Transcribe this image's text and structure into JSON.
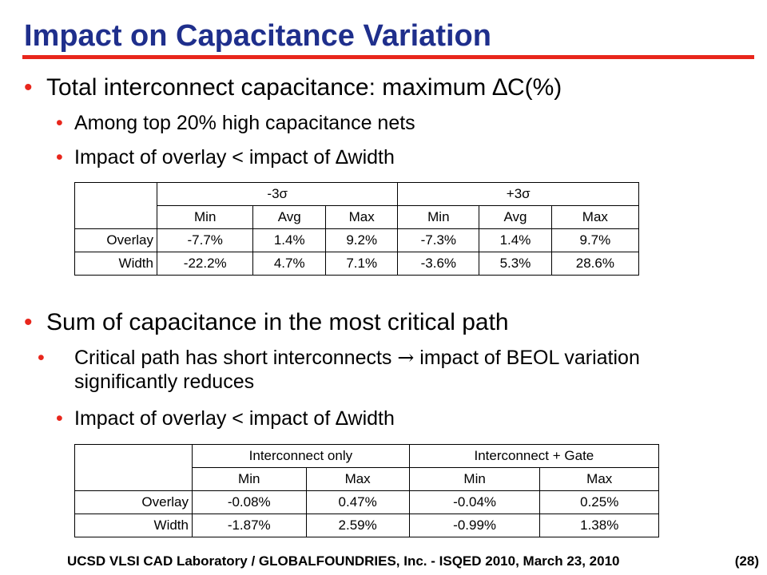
{
  "title": "Impact on Capacitance Variation",
  "colors": {
    "title": "#1f2f8c",
    "rule": "#e8261c",
    "bullet": "#e8261c"
  },
  "section1": {
    "heading": "Total interconnect capacitance: maximum ∆C(%)",
    "points": [
      "Among top 20% high capacitance nets",
      "Impact of overlay < impact of ∆width"
    ],
    "table": {
      "groups": [
        "-3σ",
        "+3σ"
      ],
      "subheaders": [
        "Min",
        "Avg",
        "Max",
        "Min",
        "Avg",
        "Max"
      ],
      "rows": [
        {
          "label": "Overlay",
          "cells": [
            "-7.7%",
            "1.4%",
            "9.2%",
            "-7.3%",
            "1.4%",
            "9.7%"
          ]
        },
        {
          "label": "Width",
          "cells": [
            "-22.2%",
            "4.7%",
            "7.1%",
            "-3.6%",
            "5.3%",
            "28.6%"
          ]
        }
      ]
    }
  },
  "section2": {
    "heading": "Sum of capacitance in the most critical path",
    "points": [
      "Critical path has short interconnects  impact of BEOL variation significantly reduces",
      "Impact of overlay < impact of ∆width"
    ],
    "arrow_icon": "right-arrow-icon",
    "point1_before": "Critical path has short interconnects",
    "point1_after": " impact of BEOL variation significantly reduces",
    "table": {
      "groups": [
        "Interconnect only",
        "Interconnect + Gate"
      ],
      "subheaders": [
        "Min",
        "Max",
        "Min",
        "Max"
      ],
      "rows": [
        {
          "label": "Overlay",
          "cells": [
            "-0.08%",
            "0.47%",
            "-0.04%",
            "0.25%"
          ]
        },
        {
          "label": "Width",
          "cells": [
            "-1.87%",
            "2.59%",
            "-0.99%",
            "1.38%"
          ]
        }
      ]
    }
  },
  "footer": {
    "text": "UCSD VLSI CAD Laboratory /   GLOBALFOUNDRIES, Inc.  - ISQED 2010,   March 23, 2010",
    "page": "(28)"
  }
}
